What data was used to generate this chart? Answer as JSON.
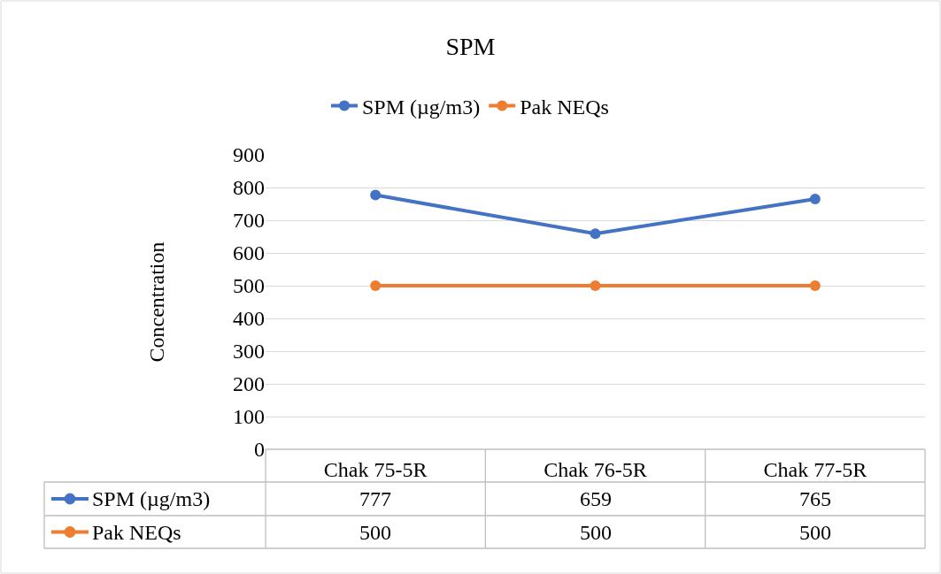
{
  "chart_data": {
    "type": "line",
    "title": "SPM",
    "ylabel": "Concentration",
    "categories": [
      "Chak 75-5R",
      "Chak 76-5R",
      "Chak 77-5R"
    ],
    "series": [
      {
        "name": "SPM (µg/m3)",
        "color": "#4472c4",
        "values": [
          777,
          659,
          765
        ]
      },
      {
        "name": "Pak NEQs",
        "color": "#ed7d31",
        "values": [
          500,
          500,
          500
        ]
      }
    ],
    "ylim": [
      0,
      900
    ],
    "yticks": [
      0,
      100,
      200,
      300,
      400,
      500,
      600,
      700,
      800,
      900
    ],
    "grid": "y",
    "legend": "top",
    "marker": "circle",
    "line_style": "solid",
    "data_labels": true
  }
}
